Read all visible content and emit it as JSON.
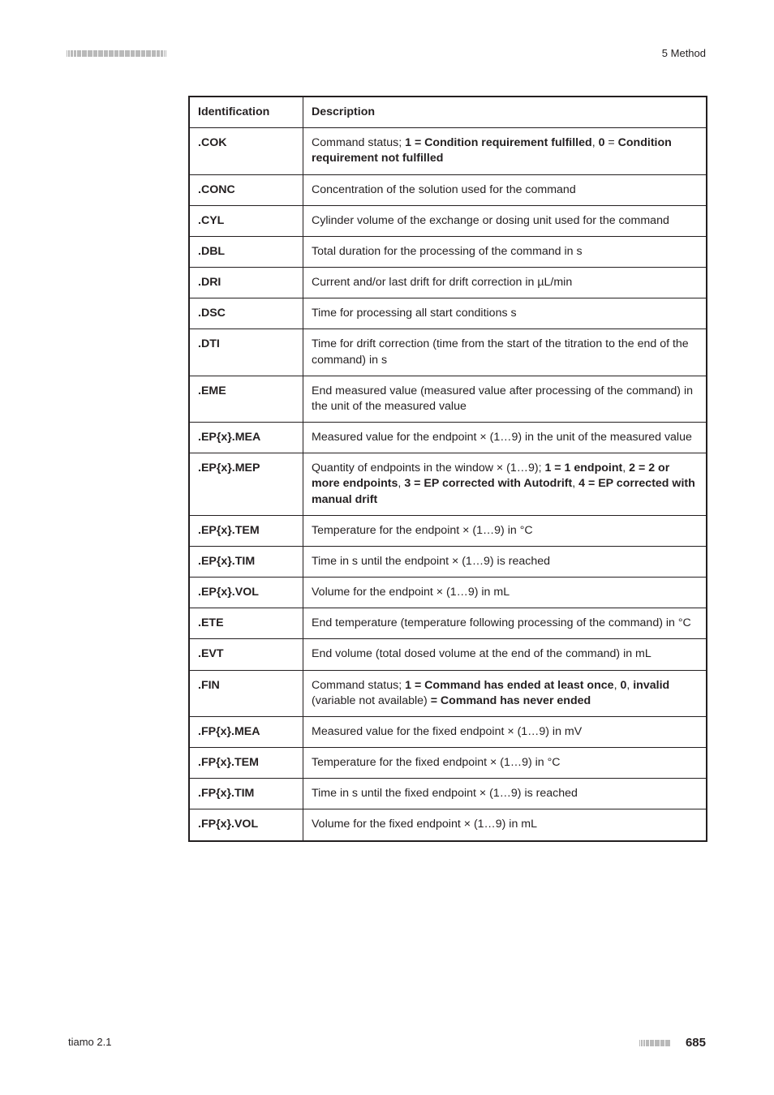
{
  "header": {
    "chapter": "5 Method",
    "segments": [
      3,
      5,
      8,
      11,
      14,
      16,
      16,
      16,
      16,
      16,
      16,
      16,
      16,
      16,
      16,
      16,
      16,
      16,
      14,
      11,
      8,
      5,
      3
    ]
  },
  "footer": {
    "product": "tiamo 2.1",
    "page": "685",
    "segments": [
      3,
      5,
      8,
      11,
      14,
      16,
      16,
      16
    ]
  },
  "table": {
    "headers": [
      "Identification",
      "Description"
    ],
    "rows": [
      {
        "id": ".COK",
        "desc_html": "Command status; <span class='b'>1 = Condition requirement fulfilled</span>, <span class='b'>0</span> = <span class='b'>Condition requirement not fulfilled</span>"
      },
      {
        "id": ".CONC",
        "desc_html": "Concentration of the solution used for the command"
      },
      {
        "id": ".CYL",
        "desc_html": "Cylinder volume of the exchange or dosing unit used for the command"
      },
      {
        "id": ".DBL",
        "desc_html": "Total duration for the processing of the command in s"
      },
      {
        "id": ".DRI",
        "desc_html": "Current and/or last drift for drift correction in µL/min"
      },
      {
        "id": ".DSC",
        "desc_html": "Time for processing all start conditions s"
      },
      {
        "id": ".DTI",
        "desc_html": "Time for drift correction (time from the start of the titration to the end of the command) in s"
      },
      {
        "id": ".EME",
        "desc_html": "End measured value (measured value after processing of the command) in the unit of the measured value"
      },
      {
        "id": ".EP{x}.MEA",
        "desc_html": "Measured value for the endpoint × (1…9) in the unit of the measured value"
      },
      {
        "id": ".EP{x}.MEP",
        "desc_html": "Quantity of endpoints in the window × (1…9); <span class='b'>1 = 1 endpoint</span>, <span class='b'>2 = 2 or more endpoints</span>, <span class='b'>3 = EP corrected with Autodrift</span>, <span class='b'>4 = EP corrected with manual drift</span>"
      },
      {
        "id": ".EP{x}.TEM",
        "desc_html": "Temperature for the endpoint × (1…9) in °C"
      },
      {
        "id": ".EP{x}.TIM",
        "desc_html": "Time in s until the endpoint × (1…9) is reached"
      },
      {
        "id": ".EP{x}.VOL",
        "desc_html": "Volume for the endpoint × (1…9) in mL"
      },
      {
        "id": ".ETE",
        "desc_html": "End temperature (temperature following processing of the command) in °C"
      },
      {
        "id": ".EVT",
        "desc_html": "End volume (total dosed volume at the end of the command) in mL"
      },
      {
        "id": ".FIN",
        "desc_html": "Command status; <span class='b'>1 = Command has ended at least once</span>, <span class='b'>0</span>, <span class='b'>invalid</span> (variable not available) <span class='b'>= Command has never ended</span>"
      },
      {
        "id": ".FP{x}.MEA",
        "desc_html": "Measured value for the fixed endpoint × (1…9) in mV"
      },
      {
        "id": ".FP{x}.TEM",
        "desc_html": "Temperature for the fixed endpoint × (1…9) in °C"
      },
      {
        "id": ".FP{x}.TIM",
        "desc_html": "Time in s until the fixed endpoint × (1…9) is reached"
      },
      {
        "id": ".FP{x}.VOL",
        "desc_html": "Volume for the fixed endpoint × (1…9) in mL"
      }
    ]
  }
}
